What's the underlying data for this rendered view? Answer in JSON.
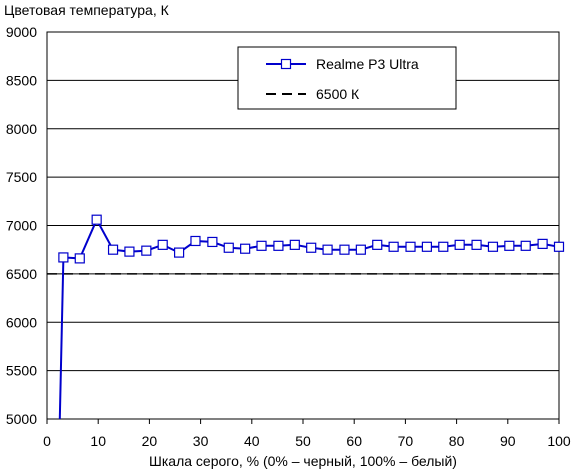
{
  "chart_data": {
    "type": "line",
    "title": "",
    "ylabel": "Цветовая температура, К",
    "xlabel": "Шкала серого, % (0% – черный, 100% – белый)",
    "xlim": [
      0,
      100
    ],
    "ylim": [
      5000,
      9000
    ],
    "xticks": [
      "0",
      "10",
      "20",
      "30",
      "40",
      "50",
      "60",
      "70",
      "80",
      "90",
      "100"
    ],
    "yticks": [
      "5000",
      "5500",
      "6000",
      "6500",
      "7000",
      "7500",
      "8000",
      "8500",
      "9000"
    ],
    "grid": "horizontal",
    "legend_position": "top-right",
    "series": [
      {
        "name": "Realme P3 Ultra",
        "color": "#0000cc",
        "marker": "square-open",
        "x": [
          2.5,
          3.2,
          6.4,
          9.7,
          12.9,
          16.1,
          19.4,
          22.6,
          25.8,
          29.0,
          32.3,
          35.5,
          38.7,
          41.9,
          45.2,
          48.4,
          51.6,
          54.8,
          58.1,
          61.3,
          64.5,
          67.7,
          71.0,
          74.2,
          77.4,
          80.6,
          83.9,
          87.1,
          90.3,
          93.5,
          96.8,
          100.0
        ],
        "y": [
          4980,
          6670,
          6660,
          7060,
          6750,
          6730,
          6740,
          6800,
          6720,
          6840,
          6830,
          6770,
          6760,
          6790,
          6790,
          6800,
          6770,
          6750,
          6750,
          6750,
          6800,
          6780,
          6780,
          6780,
          6780,
          6800,
          6800,
          6780,
          6790,
          6790,
          6810,
          6780
        ],
        "markers_from_index": 1
      },
      {
        "name": "6500 К",
        "color": "#000000",
        "style": "dashed",
        "x": [
          0,
          100
        ],
        "y": [
          6500,
          6500
        ]
      }
    ]
  }
}
